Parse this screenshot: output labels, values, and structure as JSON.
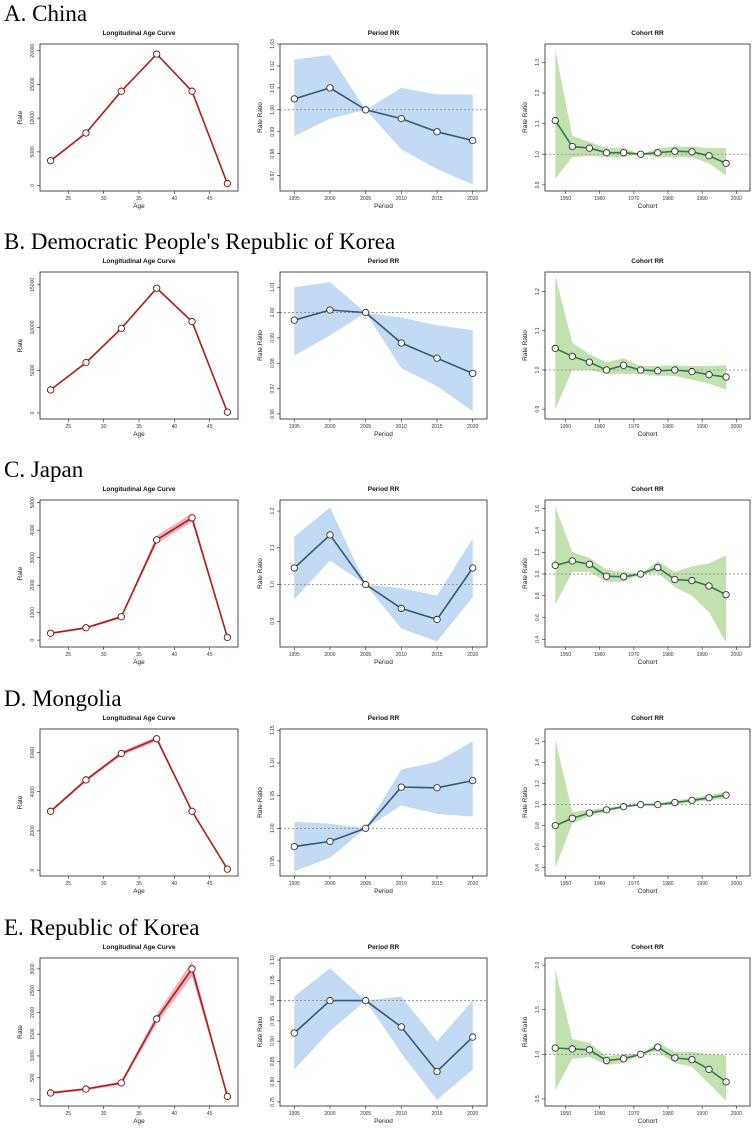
{
  "sections": [
    {
      "title": "A. China"
    },
    {
      "title": "B. Democratic People's Republic of Korea"
    },
    {
      "title": "C. Japan"
    },
    {
      "title": "D. Mongolia"
    },
    {
      "title": "E. Republic of Korea"
    }
  ],
  "colors": {
    "age_line": "#b01c1c",
    "age_band": "#f1a7b6",
    "period_line": "#3a5878",
    "period_band": "#b7d3f1",
    "cohort_line": "#2e7d4f",
    "cohort_band": "#b8dca0",
    "refline": "#888888"
  },
  "chart_data": [
    {
      "id": "A-age",
      "type": "line",
      "title": "Longitudinal Age Curve",
      "xlabel": "Age",
      "ylabel": "Rate",
      "xlim": [
        21,
        49
      ],
      "xticks": [
        25,
        30,
        35,
        40,
        45
      ],
      "ylim": [
        -800,
        21000
      ],
      "yticks": [
        0,
        5000,
        10000,
        15000,
        20000
      ],
      "x": [
        22.5,
        27.5,
        32.5,
        37.5,
        42.5,
        47.5
      ],
      "y": [
        3700,
        7800,
        14000,
        19500,
        14000,
        300
      ],
      "lower": [
        3600,
        7700,
        13850,
        19350,
        13850,
        250
      ],
      "upper": [
        3800,
        7900,
        14150,
        19650,
        14150,
        350
      ]
    },
    {
      "id": "A-period",
      "type": "line",
      "title": "Period RR",
      "xlabel": "Period",
      "ylabel": "Rate Ratio",
      "xlim": [
        1993,
        2022
      ],
      "xticks": [
        1995,
        2000,
        2005,
        2010,
        2015,
        2020
      ],
      "ylim": [
        0.963,
        1.03
      ],
      "yticks": [
        0.97,
        0.98,
        0.99,
        1.0,
        1.01,
        1.02,
        1.03
      ],
      "yticklabels": [
        "0.97",
        "0.98",
        "0.99",
        "1.00",
        "1.01",
        "1.02",
        "1.03"
      ],
      "x": [
        1995,
        2000,
        2005,
        2010,
        2015,
        2020
      ],
      "y": [
        1.005,
        1.01,
        1.0,
        0.996,
        0.99,
        0.986
      ],
      "lower": [
        0.988,
        0.996,
        1.0,
        0.982,
        0.973,
        0.966
      ],
      "upper": [
        1.023,
        1.025,
        1.0,
        1.01,
        1.007,
        1.007
      ]
    },
    {
      "id": "A-cohort",
      "type": "line",
      "title": "Cohort RR",
      "xlabel": "Cohort",
      "ylabel": "Rate Ratio",
      "xlim": [
        1944,
        2004
      ],
      "xticks": [
        1950,
        1960,
        1970,
        1980,
        1990,
        2000
      ],
      "ylim": [
        0.88,
        1.36
      ],
      "yticks": [
        0.9,
        1.0,
        1.1,
        1.2,
        1.3
      ],
      "yticklabels": [
        "0.9",
        "1.0",
        "1.1",
        "1.2",
        "1.3"
      ],
      "x": [
        1947,
        1952,
        1957,
        1962,
        1967,
        1972,
        1977,
        1982,
        1987,
        1992,
        1997
      ],
      "y": [
        1.11,
        1.025,
        1.02,
        1.005,
        1.005,
        1.0,
        1.005,
        1.01,
        1.008,
        0.995,
        0.97
      ],
      "lower": [
        0.92,
        0.99,
        0.995,
        0.99,
        0.99,
        1.0,
        0.99,
        0.99,
        0.99,
        0.97,
        0.93
      ],
      "upper": [
        1.34,
        1.06,
        1.04,
        1.02,
        1.02,
        1.0,
        1.02,
        1.025,
        1.025,
        1.02,
        1.02
      ]
    },
    {
      "id": "B-age",
      "type": "line",
      "title": "Longitudinal Age Curve",
      "xlabel": "Age",
      "ylabel": "Rate",
      "xlim": [
        21,
        49
      ],
      "xticks": [
        25,
        30,
        35,
        40,
        45
      ],
      "ylim": [
        -700,
        16500
      ],
      "yticks": [
        0,
        5000,
        10000,
        15000
      ],
      "x": [
        22.5,
        27.5,
        32.5,
        37.5,
        42.5,
        47.5
      ],
      "y": [
        2700,
        5900,
        9900,
        14600,
        10700,
        100
      ],
      "lower": [
        2620,
        5800,
        9780,
        14450,
        10570,
        50
      ],
      "upper": [
        2780,
        6000,
        10020,
        14750,
        10830,
        150
      ]
    },
    {
      "id": "B-period",
      "type": "line",
      "title": "Period RR",
      "xlabel": "Period",
      "ylabel": "Rate Ratio",
      "xlim": [
        1993,
        2022
      ],
      "xticks": [
        1995,
        2000,
        2005,
        2010,
        2015,
        2020
      ],
      "ylim": [
        0.958,
        1.016
      ],
      "yticks": [
        0.96,
        0.97,
        0.98,
        0.99,
        1.0,
        1.01
      ],
      "yticklabels": [
        "0.96",
        "0.97",
        "0.98",
        "0.99",
        "1.00",
        "1.01"
      ],
      "x": [
        1995,
        2000,
        2005,
        2010,
        2015,
        2020
      ],
      "y": [
        0.997,
        1.001,
        1.0,
        0.988,
        0.982,
        0.976
      ],
      "lower": [
        0.983,
        0.991,
        1.0,
        0.978,
        0.971,
        0.961
      ],
      "upper": [
        1.01,
        1.012,
        1.0,
        0.998,
        0.995,
        0.993
      ]
    },
    {
      "id": "B-cohort",
      "type": "line",
      "title": "Cohort RR",
      "xlabel": "Cohort",
      "ylabel": "Rate Ratio",
      "xlim": [
        1944,
        2004
      ],
      "xticks": [
        1950,
        1960,
        1970,
        1980,
        1990,
        2000
      ],
      "ylim": [
        0.875,
        1.25
      ],
      "yticks": [
        0.9,
        1.0,
        1.1,
        1.2
      ],
      "yticklabels": [
        "0.9",
        "1.0",
        "1.1",
        "1.2"
      ],
      "x": [
        1947,
        1952,
        1957,
        1962,
        1967,
        1972,
        1977,
        1982,
        1987,
        1992,
        1997
      ],
      "y": [
        1.055,
        1.035,
        1.02,
        1.0,
        1.012,
        1.0,
        0.998,
        1.0,
        0.996,
        0.988,
        0.982
      ],
      "lower": [
        0.9,
        1.0,
        1.0,
        0.99,
        0.99,
        0.99,
        0.985,
        0.985,
        0.975,
        0.965,
        0.95
      ],
      "upper": [
        1.24,
        1.07,
        1.04,
        1.02,
        1.03,
        1.01,
        1.01,
        1.012,
        1.01,
        1.01,
        1.012
      ]
    },
    {
      "id": "C-age",
      "type": "line",
      "title": "Longitudinal Age Curve",
      "xlabel": "Age",
      "ylabel": "Rate",
      "xlim": [
        21,
        49
      ],
      "xticks": [
        25,
        30,
        35,
        40,
        45
      ],
      "ylim": [
        -250,
        5100
      ],
      "yticks": [
        0,
        1000,
        2000,
        3000,
        4000,
        5000
      ],
      "x": [
        22.5,
        27.5,
        32.5,
        37.5,
        42.5,
        47.5
      ],
      "y": [
        250,
        450,
        850,
        3650,
        4450,
        100
      ],
      "lower": [
        220,
        410,
        800,
        3520,
        4300,
        80
      ],
      "upper": [
        280,
        490,
        900,
        3800,
        4620,
        120
      ]
    },
    {
      "id": "C-period",
      "type": "line",
      "title": "Period RR",
      "xlabel": "Period",
      "ylabel": "Rate Ratio",
      "xlim": [
        1993,
        2022
      ],
      "xticks": [
        1995,
        2000,
        2005,
        2010,
        2015,
        2020
      ],
      "ylim": [
        0.83,
        1.23
      ],
      "yticks": [
        0.9,
        1.0,
        1.1,
        1.2
      ],
      "yticklabels": [
        "0.9",
        "1.0",
        "1.1",
        "1.2"
      ],
      "x": [
        1995,
        2000,
        2005,
        2010,
        2015,
        2020
      ],
      "y": [
        1.045,
        1.135,
        1.0,
        0.935,
        0.905,
        1.045
      ],
      "lower": [
        0.96,
        1.065,
        1.0,
        0.88,
        0.845,
        0.965
      ],
      "upper": [
        1.13,
        1.21,
        1.0,
        0.99,
        0.97,
        1.125
      ]
    },
    {
      "id": "C-cohort",
      "type": "line",
      "title": "Cohort RR",
      "xlabel": "Cohort",
      "ylabel": "Rate Ratio",
      "xlim": [
        1944,
        2004
      ],
      "xticks": [
        1950,
        1960,
        1970,
        1980,
        1990,
        2000
      ],
      "ylim": [
        0.33,
        1.68
      ],
      "yticks": [
        0.4,
        0.6,
        0.8,
        1.0,
        1.2,
        1.4,
        1.6
      ],
      "yticklabels": [
        "0.4",
        "0.6",
        "0.8",
        "1.0",
        "1.2",
        "1.4",
        "1.6"
      ],
      "x": [
        1947,
        1952,
        1957,
        1962,
        1967,
        1972,
        1977,
        1982,
        1987,
        1992,
        1997
      ],
      "y": [
        1.08,
        1.12,
        1.09,
        0.98,
        0.975,
        1.0,
        1.06,
        0.95,
        0.94,
        0.89,
        0.81
      ],
      "lower": [
        0.72,
        1.02,
        1.02,
        0.93,
        0.93,
        1.0,
        1.01,
        0.88,
        0.8,
        0.65,
        0.37
      ],
      "upper": [
        1.62,
        1.2,
        1.15,
        1.04,
        1.02,
        1.0,
        1.12,
        1.02,
        1.07,
        1.1,
        1.17
      ]
    },
    {
      "id": "D-age",
      "type": "line",
      "title": "Longitudinal Age Curve",
      "xlabel": "Age",
      "ylabel": "Rate",
      "xlim": [
        21,
        49
      ],
      "xticks": [
        25,
        30,
        35,
        40,
        45
      ],
      "ylim": [
        -300,
        7200
      ],
      "yticks": [
        0,
        2000,
        4000,
        6000
      ],
      "x": [
        22.5,
        27.5,
        32.5,
        37.5,
        42.5,
        47.5
      ],
      "y": [
        3000,
        4600,
        5950,
        6700,
        3000,
        50
      ],
      "lower": [
        2930,
        4520,
        5850,
        6580,
        2930,
        20
      ],
      "upper": [
        3070,
        4680,
        6050,
        6820,
        3070,
        80
      ]
    },
    {
      "id": "D-period",
      "type": "line",
      "title": "Period RR",
      "xlabel": "Period",
      "ylabel": "Rate Ratio",
      "xlim": [
        1993,
        2022
      ],
      "xticks": [
        1995,
        2000,
        2005,
        2010,
        2015,
        2020
      ],
      "ylim": [
        0.927,
        1.152
      ],
      "yticks": [
        0.95,
        1.0,
        1.05,
        1.1,
        1.15
      ],
      "yticklabels": [
        "0.95",
        "1.00",
        "1.05",
        "1.10",
        "1.15"
      ],
      "x": [
        1995,
        2000,
        2005,
        2010,
        2015,
        2020
      ],
      "y": [
        0.972,
        0.98,
        1.0,
        1.063,
        1.062,
        1.073
      ],
      "lower": [
        0.934,
        0.955,
        1.0,
        1.035,
        1.022,
        1.018
      ],
      "upper": [
        1.01,
        1.007,
        1.0,
        1.09,
        1.102,
        1.133
      ]
    },
    {
      "id": "D-cohort",
      "type": "line",
      "title": "Cohort RR",
      "xlabel": "Cohort",
      "ylabel": "Rate Ratio",
      "xlim": [
        1944,
        2004
      ],
      "xticks": [
        1950,
        1960,
        1970,
        1980,
        1990,
        2000
      ],
      "ylim": [
        0.32,
        1.72
      ],
      "yticks": [
        0.4,
        0.6,
        0.8,
        1.0,
        1.2,
        1.4,
        1.6
      ],
      "yticklabels": [
        "0.4",
        "0.6",
        "0.8",
        "1.0",
        "1.2",
        "1.4",
        "1.6"
      ],
      "x": [
        1947,
        1952,
        1957,
        1962,
        1967,
        1972,
        1977,
        1982,
        1987,
        1992,
        1997
      ],
      "y": [
        0.8,
        0.87,
        0.92,
        0.95,
        0.98,
        1.0,
        1.0,
        1.02,
        1.04,
        1.065,
        1.09
      ],
      "lower": [
        0.4,
        0.82,
        0.89,
        0.93,
        0.97,
        1.0,
        0.99,
        1.0,
        1.02,
        1.04,
        1.06
      ],
      "upper": [
        1.62,
        0.93,
        0.95,
        0.97,
        0.99,
        1.0,
        1.01,
        1.04,
        1.06,
        1.09,
        1.12
      ]
    },
    {
      "id": "E-age",
      "type": "line",
      "title": "Longitudinal Age Curve",
      "xlabel": "Age",
      "ylabel": "Rate",
      "xlim": [
        21,
        49
      ],
      "xticks": [
        25,
        30,
        35,
        40,
        45
      ],
      "ylim": [
        -150,
        3250
      ],
      "yticks": [
        0,
        500,
        1000,
        1500,
        2000,
        2500,
        3000
      ],
      "x": [
        22.5,
        27.5,
        32.5,
        37.5,
        42.5,
        47.5
      ],
      "y": [
        150,
        240,
        380,
        1850,
        3000,
        70
      ],
      "lower": [
        120,
        210,
        340,
        1740,
        2830,
        50
      ],
      "upper": [
        180,
        270,
        420,
        1960,
        3170,
        90
      ]
    },
    {
      "id": "E-period",
      "type": "line",
      "title": "Period RR",
      "xlabel": "Period",
      "ylabel": "Rate Ratio",
      "xlim": [
        1993,
        2022
      ],
      "xticks": [
        1995,
        2000,
        2005,
        2010,
        2015,
        2020
      ],
      "ylim": [
        0.74,
        1.105
      ],
      "yticks": [
        0.75,
        0.8,
        0.85,
        0.9,
        0.95,
        1.0,
        1.05,
        1.1
      ],
      "yticklabels": [
        "0.75",
        "0.80",
        "0.85",
        "0.90",
        "0.95",
        "1.00",
        "1.05",
        "1.10"
      ],
      "x": [
        1995,
        2000,
        2005,
        2010,
        2015,
        2020
      ],
      "y": [
        0.92,
        1.0,
        1.0,
        0.935,
        0.825,
        0.91
      ],
      "lower": [
        0.83,
        0.925,
        1.0,
        0.87,
        0.755,
        0.83
      ],
      "upper": [
        1.01,
        1.08,
        1.0,
        1.01,
        0.9,
        1.0
      ]
    },
    {
      "id": "E-cohort",
      "type": "line",
      "title": "Cohort RR",
      "xlabel": "Cohort",
      "ylabel": "Rate Ratio",
      "xlim": [
        1944,
        2004
      ],
      "xticks": [
        1950,
        1960,
        1970,
        1980,
        1990,
        2000
      ],
      "ylim": [
        0.42,
        2.08
      ],
      "yticks": [
        0.5,
        1.0,
        1.5,
        2.0
      ],
      "yticklabels": [
        "0.5",
        "1.0",
        "1.5",
        "2.0"
      ],
      "x": [
        1947,
        1952,
        1957,
        1962,
        1967,
        1972,
        1977,
        1982,
        1987,
        1992,
        1997
      ],
      "y": [
        1.07,
        1.06,
        1.05,
        0.93,
        0.95,
        1.0,
        1.08,
        0.96,
        0.94,
        0.83,
        0.69
      ],
      "lower": [
        0.6,
        0.95,
        0.97,
        0.88,
        0.9,
        1.0,
        1.03,
        0.9,
        0.86,
        0.67,
        0.48
      ],
      "upper": [
        1.95,
        1.17,
        1.13,
        0.98,
        1.0,
        1.0,
        1.13,
        1.03,
        1.03,
        1.0,
        0.99
      ]
    }
  ]
}
